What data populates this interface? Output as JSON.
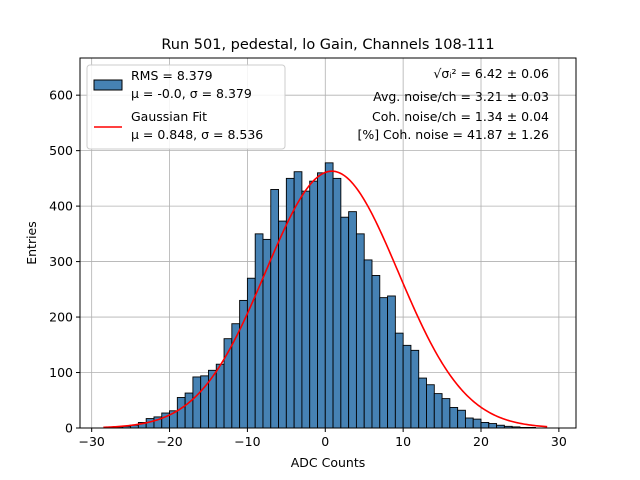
{
  "chart_data": {
    "type": "bar",
    "title": "Run 501, pedestal, lo Gain, Channels 108-111",
    "xlabel": "ADC Counts",
    "ylabel": "Entries",
    "xlim": [
      -31.5,
      32.2
    ],
    "ylim": [
      0,
      667
    ],
    "xticks": [
      -30,
      -20,
      -10,
      0,
      10,
      20,
      30
    ],
    "yticks": [
      0,
      100,
      200,
      300,
      400,
      500,
      600
    ],
    "grid": true,
    "legend_position": "top-left",
    "bar_color": "#4682b4",
    "fit_color": "#ff0000",
    "bin_width": 1,
    "histogram": {
      "name": "RMS = 8.379",
      "name_line2": "μ = -0.0, σ = 8.379",
      "bin_left_edges": [
        -28,
        -27,
        -26,
        -25,
        -24,
        -23,
        -22,
        -21,
        -20,
        -19,
        -18,
        -17,
        -16,
        -15,
        -14,
        -13,
        -12,
        -11,
        -10,
        -9,
        -8,
        -7,
        -6,
        -5,
        -4,
        -3,
        -2,
        -1,
        0,
        1,
        2,
        3,
        4,
        5,
        6,
        7,
        8,
        9,
        10,
        11,
        12,
        13,
        14,
        15,
        16,
        17,
        18,
        19,
        20,
        21,
        22,
        23,
        24,
        25,
        26
      ],
      "counts": [
        1,
        2,
        3,
        5,
        10,
        17,
        20,
        27,
        31,
        55,
        63,
        92,
        94,
        104,
        115,
        161,
        188,
        230,
        270,
        350,
        340,
        430,
        373,
        450,
        462,
        427,
        445,
        460,
        478,
        450,
        380,
        390,
        350,
        303,
        275,
        235,
        238,
        171,
        149,
        140,
        90,
        78,
        62,
        53,
        37,
        32,
        18,
        16,
        10,
        8,
        5,
        3,
        2,
        1,
        1
      ]
    },
    "fit": {
      "name": "Gaussian Fit",
      "name_line2": "μ = 0.848, σ = 8.536",
      "amplitude": 463,
      "mu": 0.848,
      "sigma": 8.536,
      "x_range": [
        -28.5,
        28.5
      ]
    },
    "annotations": [
      "√σᵢ² = 6.42 ± 0.06",
      "Avg. noise/ch = 3.21 ± 0.03",
      "Coh. noise/ch = 1.34 ± 0.04",
      "[%] Coh. noise = 41.87 ± 1.26"
    ]
  }
}
